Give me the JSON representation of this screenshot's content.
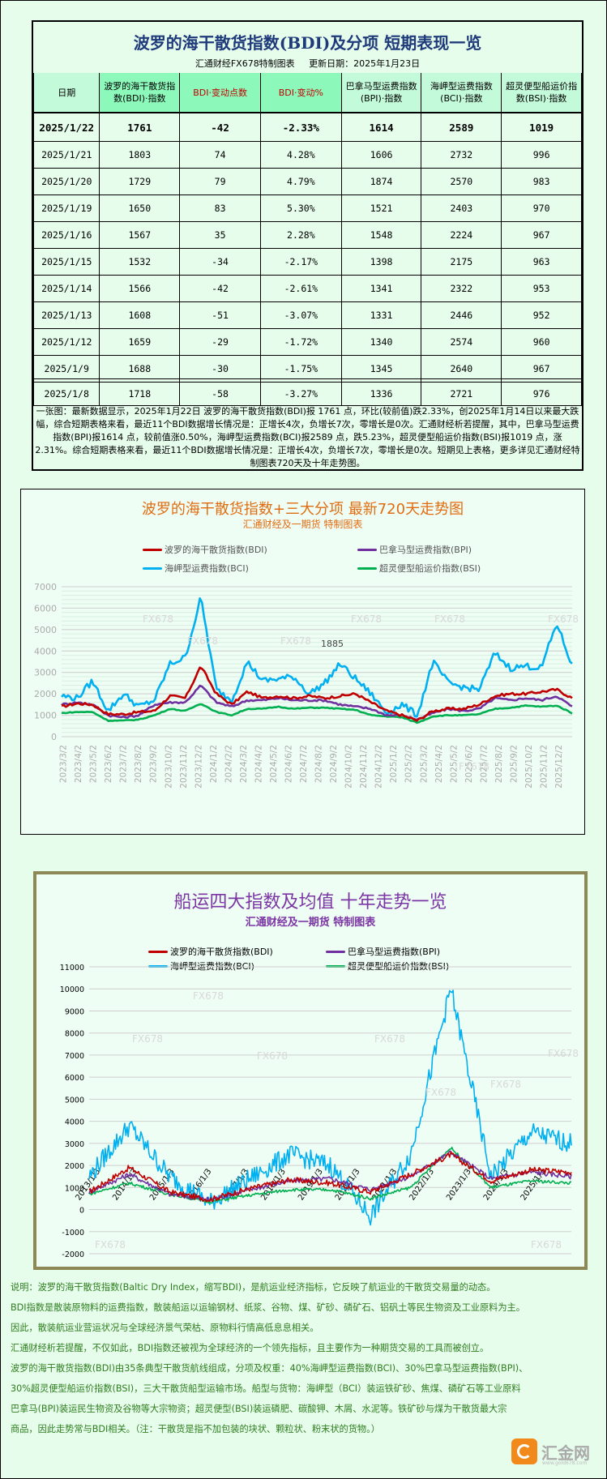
{
  "table_panel": {
    "title": "波罗的海干散货指数(BDI)及分项 短期表现一览",
    "subtitle": "汇通财经FX678特制图表     更新日期：2025年1月23日",
    "headers": [
      "日期",
      "波罗的海干散货指数(BDI)·指数",
      "BDI·变动点数",
      "BDI·变动%",
      "巴拿马型运费指数(BPI)·指数",
      "海岬型运费指数(BCI)·指数",
      "超灵便型船运价指数(BSI)·指数"
    ],
    "rows": [
      [
        "2025/1/22",
        "1761",
        "-42",
        "-2.33%",
        "1614",
        "2589",
        "1019"
      ],
      [
        "2025/1/21",
        "1803",
        "74",
        "4.28%",
        "1606",
        "2732",
        "996"
      ],
      [
        "2025/1/20",
        "1729",
        "79",
        "4.79%",
        "1874",
        "2570",
        "983"
      ],
      [
        "2025/1/19",
        "1650",
        "83",
        "5.30%",
        "1521",
        "2403",
        "970"
      ],
      [
        "2025/1/16",
        "1567",
        "35",
        "2.28%",
        "1548",
        "2224",
        "967"
      ],
      [
        "2025/1/15",
        "1532",
        "-34",
        "-2.17%",
        "1398",
        "2175",
        "963"
      ],
      [
        "2025/1/14",
        "1566",
        "-42",
        "-2.61%",
        "1341",
        "2322",
        "953"
      ],
      [
        "2025/1/13",
        "1608",
        "-51",
        "-3.07%",
        "1331",
        "2446",
        "952"
      ],
      [
        "2025/1/12",
        "1659",
        "-29",
        "-1.72%",
        "1340",
        "2574",
        "960"
      ],
      [
        "2025/1/9",
        "1688",
        "-30",
        "-1.75%",
        "1345",
        "2640",
        "967"
      ],
      [
        "2025/1/8",
        "1718",
        "-58",
        "-3.27%",
        "1336",
        "2721",
        "976"
      ]
    ],
    "summary": "一张图：最新数据显示，2025年1月22日 波罗的海干散货指数(BDI)报 1761 点，环比(较前值)跌2.33%，创2025年1月14日以来最大跌幅，综合短期表格来看，最近11个BDI数据增长情况是：正增长4次，负增长7次，零增长是0次。汇通财经析若提醒，其中，巴拿马型运费指数(BPI)报1614 点，较前值涨0.50%，海岬型运费指数(BCI)报2589 点，跌5.23%，超灵便型船运价指数(BSI)报1019 点，涨2.31%。综合短期表格来看，最近11个BDI数据增长情况是：正增长4次，负增长7次，零增长是0次。短期见上表格，更多详见汇通财经特制图表720天及十年走势图。"
  },
  "colors": {
    "bdi": "#c00000",
    "bpi": "#7030a0",
    "bci": "#00b0f0",
    "bsi": "#00b050",
    "header_green": "#8cf9ba",
    "header_light": "#c3fad9",
    "page_bg": "#e6fdec",
    "chart1_title": "#e06c12",
    "chart2_title": "#7b35a4"
  },
  "chart1": {
    "title": "波罗的海干散货指数+三大分项  最新720天走势图",
    "subtitle": "汇通财经及一期货 特制图表",
    "legend": [
      "波罗的海干散货指数(BDI)",
      "巴拿马型运费指数(BPI)",
      "海岬型运费指数(BCI)",
      "超灵便型船运价指数(BSI)"
    ],
    "watermark": "FX678",
    "point_label": "1885"
  },
  "chart2": {
    "title": "船运四大指数及均值 十年走势一览",
    "subtitle": "汇通财经及一期货 特制图表",
    "legend": [
      "波罗的海干散货指数(BDI)",
      "巴拿马型运费指数(BPI)",
      "海岬型运费指数(BCI)",
      "超灵便型船运价指数(BSI)"
    ],
    "watermark": "FX678"
  },
  "chart_data": [
    {
      "type": "line",
      "title": "波罗的海干散货指数+三大分项  最新720天走势图",
      "subtitle": "汇通财经及一期货 特制图表",
      "xlabel": "",
      "ylabel": "",
      "ylim": [
        0,
        7000
      ],
      "yticks": [
        0,
        1000,
        2000,
        3000,
        4000,
        5000,
        6000,
        7000
      ],
      "grid": true,
      "legend_position": "top",
      "categories": [
        "2023/3/2",
        "2023/4/2",
        "2023/5/2",
        "2023/6/2",
        "2023/7/2",
        "2023/8/2",
        "2023/9/2",
        "2023/10/2",
        "2023/11/2",
        "2023/12/2",
        "2024/1/2",
        "2024/2/2",
        "2024/3/2",
        "2024/4/2",
        "2024/5/2",
        "2024/6/2",
        "2024/7/2",
        "2024/8/2",
        "2024/9/2",
        "2024/10/2",
        "2024/11/2",
        "2024/12/2",
        "2025/1/2",
        "2025/2/2",
        "2025/3/2",
        "2025/4/2",
        "2025/5/2",
        "2025/6/2",
        "2025/7/2",
        "2025/8/2",
        "2025/9/2",
        "2025/10/2",
        "2025/11/2",
        "2025/12/2"
      ],
      "series": [
        {
          "name": "波罗的海干散货指数(BDI)",
          "values": [
            1400,
            1550,
            1500,
            1050,
            1050,
            1150,
            1200,
            1900,
            1800,
            3300,
            2000,
            1500,
            2100,
            1800,
            1900,
            1800,
            1900,
            1800,
            1900,
            2000,
            1600,
            1200,
            1000,
            750,
            1200,
            1300,
            1300,
            1500,
            1900,
            2000,
            2000,
            2100,
            2200,
            1800
          ]
        },
        {
          "name": "巴拿马型运费指数(BPI)",
          "values": [
            1500,
            1600,
            1500,
            1000,
            900,
            1000,
            1500,
            1600,
            1600,
            2400,
            1600,
            1400,
            1700,
            1700,
            1800,
            1700,
            1700,
            1700,
            1500,
            1400,
            1300,
            1000,
            1000,
            800,
            1100,
            1300,
            1200,
            1300,
            1800,
            1700,
            1800,
            1700,
            1900,
            1400
          ]
        },
        {
          "name": "海岬型运费指数(BCI)",
          "values": [
            1900,
            1800,
            2600,
            1200,
            2000,
            1400,
            1700,
            3400,
            3700,
            6500,
            2200,
            1700,
            3500,
            2600,
            2700,
            2800,
            2000,
            2500,
            3400,
            2700,
            2000,
            1100,
            1500,
            1000,
            3500,
            2500,
            2300,
            2200,
            3900,
            3200,
            3300,
            3200,
            5300,
            3300
          ]
        },
        {
          "name": "超灵便型船运价指数(BSI)",
          "values": [
            1100,
            1150,
            1150,
            750,
            750,
            800,
            1000,
            1300,
            1200,
            1550,
            1150,
            1000,
            1300,
            1300,
            1400,
            1300,
            1350,
            1350,
            1300,
            1250,
            1000,
            950,
            900,
            650,
            950,
            1000,
            1000,
            1050,
            1300,
            1350,
            1450,
            1400,
            1450,
            1100
          ]
        }
      ]
    },
    {
      "type": "line",
      "title": "船运四大指数及均值 十年走势一览",
      "subtitle": "汇通财经及一期货 特制图表",
      "xlabel": "",
      "ylabel": "",
      "ylim": [
        -2000,
        11000
      ],
      "yticks": [
        -2000,
        -1000,
        0,
        1000,
        2000,
        3000,
        4000,
        5000,
        6000,
        7000,
        8000,
        9000,
        10000,
        11000
      ],
      "grid": true,
      "legend_position": "top",
      "categories": [
        "2013/1/3",
        "2014/1/3",
        "2015/1/3",
        "2016/1/3",
        "2017/1/3",
        "2018/1/3",
        "2019/1/3",
        "2020/1/3",
        "2021/1/3",
        "2022/1/3",
        "2023/1/3",
        "2024/1/3",
        "2025/1/3"
      ],
      "series": [
        {
          "name": "波罗的海干散货指数(BDI)",
          "values": [
            800,
            1900,
            800,
            450,
            950,
            1350,
            1200,
            800,
            1600,
            2500,
            1300,
            1800,
            1700
          ]
        },
        {
          "name": "巴拿马型运费指数(BPI)",
          "values": [
            800,
            1600,
            700,
            450,
            900,
            1300,
            1400,
            900,
            1500,
            2600,
            1400,
            1700,
            1500
          ]
        },
        {
          "name": "海岬型运费指数(BCI)",
          "values": [
            1500,
            3800,
            1500,
            300,
            1400,
            2500,
            2000,
            -300,
            2500,
            10000,
            1500,
            3500,
            3000
          ]
        },
        {
          "name": "超灵便型船运价指数(BSI)",
          "values": [
            700,
            1200,
            700,
            350,
            650,
            900,
            900,
            500,
            1000,
            2800,
            1000,
            1300,
            1200
          ]
        }
      ]
    }
  ],
  "notes": [
    "说明：波罗的海干散货指数(Baltic Dry Index，缩写BDI)，是航运业经济指标，它反映了航运业的干散货交易量的动态。",
    "BDI指数是散装原物料的运费指数，散装船运以运输钢材、纸浆、谷物、煤、矿砂、磷矿石、铝矾土等民生物资及工业原料为主。",
    "因此，散装航运业营运状况与全球经济景气荣枯、原物料行情高低息息相关。",
    "汇通财经析若提醒，不仅如此，BDI指数还被视为全球经济的一个领先指标，且主要作为一种期货交易的工具而被创立。",
    "波罗的海干散货指数(BDI)由35条典型干散货航线组成，分项及权重：40%海岬型运费指数(BCI)、30%巴拿马型运费指数(BPI)、",
    "30%超灵便型船运价指数(BSI)，三大干散货船型运输市场。船型与货物：海岬型（BCI）装运铁矿砂、焦煤、磷矿石等工业原料",
    "巴拿马(BPI)装运民生物资及谷物等大宗物资；超灵便型(BSI)装运磷肥、碳酸钾、木屑、水泥等。铁矿砂与煤为干散货最大宗",
    "商品，因此走势常与BDI相关。（注：干散货是指不加包装的块状、颗粒状、粉末状的货物。）"
  ],
  "logo": {
    "text": "汇金网",
    "url": "www.gold678.com"
  }
}
